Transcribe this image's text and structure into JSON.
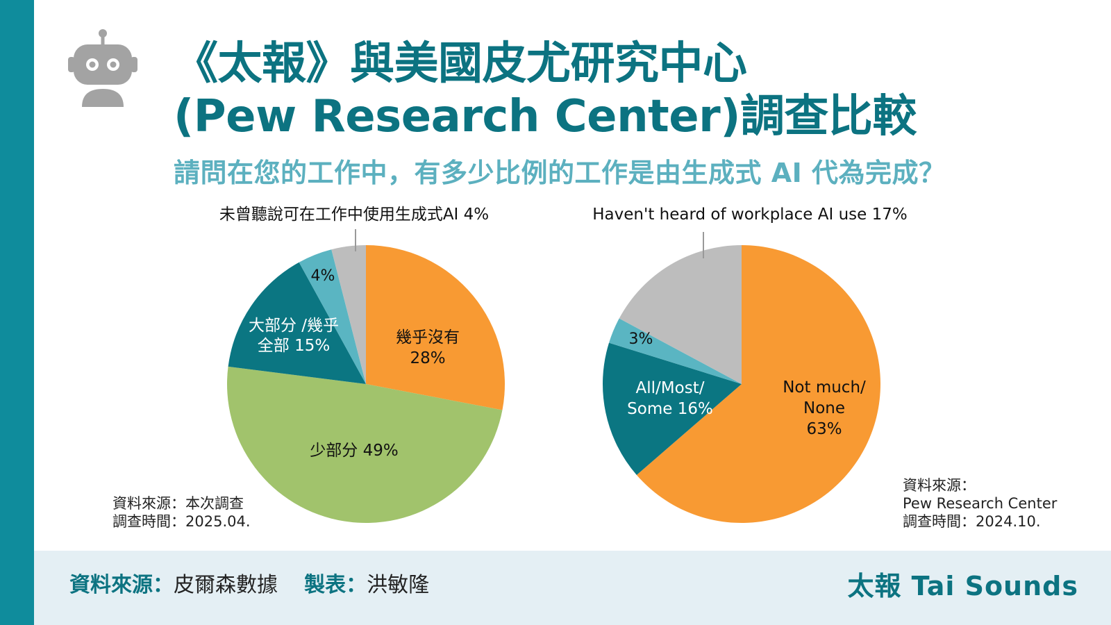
{
  "title": {
    "line1": "《太報》與美國皮尤研究中心",
    "line2": "(Pew Research Center)調查比較"
  },
  "question": "請問在您的工作中，有多少比例的工作是由生成式 AI 代為完成？",
  "icons": {
    "logo": "robot-icon"
  },
  "colors": {
    "accent": "#0f8c9c",
    "title": "#0c7381",
    "question": "#5cb0bf",
    "orange": "#f89a33",
    "green": "#a1c36c",
    "teal_dark": "#0b7682",
    "teal_light": "#5ab5c2",
    "gray": "#bdbdbd",
    "footer_bg": "#e4eff4"
  },
  "chart_data": [
    {
      "type": "pie",
      "start_angle": 0,
      "direction": "clockwise",
      "callout": "未曾聽說可在工作中使用生成式AI 4%",
      "slices": [
        {
          "label": "幾乎沒有",
          "value": 28,
          "value_label": "28%",
          "color": "#f89a33"
        },
        {
          "label": "少部分",
          "value": 49,
          "value_label": "49%",
          "color": "#a1c36c"
        },
        {
          "label": "大部分 /幾乎全部",
          "value": 15,
          "value_label": "15%",
          "color": "#0b7682"
        },
        {
          "label": "",
          "value": 4,
          "value_label": "4%",
          "color": "#5ab5c2"
        },
        {
          "label": "未曾聽說可在工作中使用生成式AI",
          "value": 4,
          "value_label": "4%",
          "color": "#bdbdbd"
        }
      ],
      "source": {
        "line1": "資料來源：本次調查",
        "line2": "調查時間：2025.04."
      }
    },
    {
      "type": "pie",
      "start_angle": 0,
      "direction": "clockwise",
      "callout": "Haven't heard of workplace AI use 17%",
      "slices": [
        {
          "label": "Not much/ None",
          "value": 63,
          "value_label": "63%",
          "color": "#f89a33"
        },
        {
          "label": "All/Most/ Some",
          "value": 16,
          "value_label": "16%",
          "color": "#0b7682"
        },
        {
          "label": "",
          "value": 3,
          "value_label": "3%",
          "color": "#5ab5c2"
        },
        {
          "label": "Haven't heard of workplace AI use",
          "value": 17,
          "value_label": "17%",
          "color": "#bdbdbd"
        }
      ],
      "source": {
        "line1": "資料來源：",
        "line2": "Pew Research Center",
        "line3": "調查時間：2024.10."
      }
    }
  ],
  "footer": {
    "source_label": "資料來源：",
    "source_value": "皮爾森數據",
    "maker_label": "製表：",
    "maker_value": "洪敏隆",
    "brand": "太報 Tai Sounds"
  }
}
